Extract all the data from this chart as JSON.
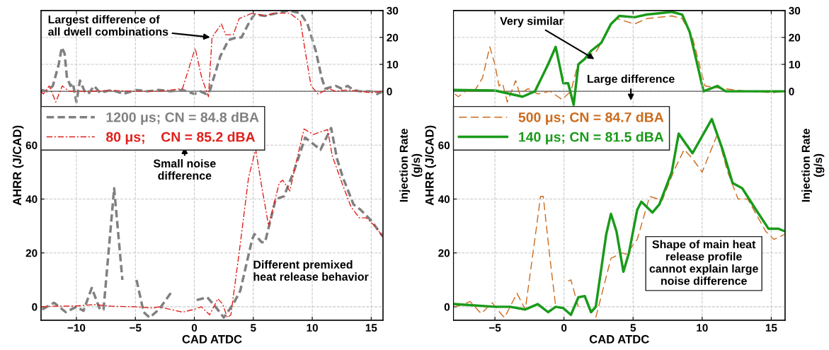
{
  "chart_data": [
    {
      "type": "line",
      "xlabel": "CAD ATDC",
      "ylabel": "AHRR (J/CAD)",
      "y2label": "Injection Rate\n(g/s)",
      "xlim": [
        -13,
        16
      ],
      "xticks": [
        -10,
        -5,
        0,
        5,
        10,
        15
      ],
      "ylim": [
        -5,
        110
      ],
      "yticks": [
        0,
        20,
        40,
        60
      ],
      "y2lim": [
        -85,
        30
      ],
      "y2ticks": [
        0,
        10,
        20,
        30
      ],
      "grid": true,
      "legend": "top left",
      "marker": "none",
      "ref_lines": [
        {
          "axis": "y2",
          "value": 0,
          "color": "#606060",
          "line_style": "solid"
        }
      ],
      "annotations": [
        {
          "text": "Largest difference of\nall dwell combinations",
          "x": 1.5,
          "y": 100
        },
        "Small noise\ndifference",
        "Different premixed\nheat release behavior"
      ],
      "series": [
        {
          "name": "1200 μs; CN = 84.8 dBA",
          "color": "#808080",
          "line_style": "dashed",
          "x": [
            -12.9,
            -11.9,
            -10.9,
            -10,
            -9.4,
            -8.7,
            -8.0,
            -7.7,
            -6.8,
            -6.1,
            -5.6,
            -4.9,
            -4.3,
            -3.8,
            -3,
            -1.85,
            -0.7,
            0.2,
            1.1,
            1.8,
            2.5,
            3.3,
            3.9,
            4.9,
            5.1,
            5.7,
            6.0,
            6.9,
            7.6,
            8.5,
            9.4,
            10.7,
            11.6,
            12.1,
            12.6,
            13.5,
            14.1,
            15,
            16
          ],
          "values": [
            -1,
            1.5,
            -2,
            0,
            -1.5,
            7,
            -1,
            -1,
            44,
            10,
            null,
            10,
            -2,
            -4,
            -1,
            6,
            null,
            2.5,
            3.5,
            0,
            -4,
            1,
            6,
            25,
            27,
            24,
            24,
            40,
            41,
            51,
            62.8,
            58.3,
            66.4,
            55,
            48,
            38,
            36,
            32,
            26
          ]
        },
        {
          "name": "80 μs;    CN = 85.2 dBA",
          "color": "#e0201b",
          "line_style": "dashed",
          "x": [
            -13,
            -12,
            -10,
            -8.5,
            -7,
            -5,
            -3.5,
            -3,
            -2,
            -1,
            -0.05,
            0.6,
            1.3,
            2.0,
            2.4,
            2.8,
            3.1,
            3.8,
            4.6,
            5.2,
            5.7,
            6.3,
            7.2,
            7.5,
            8.1,
            8.5,
            9.3,
            10.1,
            11.3,
            11.7,
            12.6,
            13.3,
            14,
            14.6,
            15.3,
            16
          ],
          "values": [
            0,
            0.2,
            0.3,
            0.8,
            0.2,
            0,
            -0.5,
            0,
            -1,
            -2,
            -1,
            0,
            -3,
            3,
            1,
            -4,
            -3,
            20,
            48,
            58.5,
            45,
            30,
            46,
            47,
            43,
            51,
            66,
            64,
            65.8,
            56,
            45,
            37,
            33,
            33,
            30,
            26
          ]
        },
        {
          "color": "#808080",
          "line_style": "dashed",
          "axis": "y2",
          "x": [
            -13,
            -12.5,
            -12,
            -11.5,
            -11.24,
            -11,
            -10.8,
            -10.5,
            -10.3,
            -10,
            -9.7,
            -9.3,
            -9,
            -8.5,
            -8,
            -7,
            -6,
            -5,
            -4,
            -3,
            -2,
            -1,
            0,
            0.5,
            1,
            1.3,
            2.2,
            2.9,
            3.56,
            4.0,
            4.7,
            5.1,
            6.0,
            7,
            8,
            9.0,
            9.6,
            10.3,
            10.8,
            11.1,
            12,
            12.5,
            13,
            13.5,
            14,
            15,
            15.5,
            16
          ],
          "values": [
            0.5,
            0,
            2,
            10,
            16.3,
            14,
            5,
            2,
            3,
            -4,
            4,
            0,
            -1,
            2,
            -0.5,
            0.5,
            -1,
            0.5,
            0,
            0.5,
            0,
            0.5,
            -1,
            0,
            -1,
            0,
            13,
            19,
            20,
            20,
            26,
            28.5,
            28,
            29,
            30,
            29,
            25,
            15,
            5,
            1,
            2,
            1,
            2,
            0.5,
            0,
            0,
            -1,
            0
          ]
        },
        {
          "color": "#e0201b",
          "line_style": "dashed",
          "axis": "y2",
          "x": [
            -13,
            -12.8,
            -12.3,
            -11.75,
            -11.2,
            -10.6,
            -9,
            -7,
            -5,
            -3,
            -1,
            0.07,
            0.63,
            1.2,
            1.5,
            2.3,
            2.65,
            3.3,
            3.8,
            4.9,
            6,
            6.7,
            8.1,
            9,
            9.4,
            9.9,
            10.5,
            11.4,
            12,
            13,
            14,
            15,
            16
          ],
          "values": [
            0,
            -1,
            2,
            -4,
            2,
            0,
            0,
            0.3,
            0,
            0,
            1,
            16,
            5,
            -2,
            20,
            25,
            21,
            21,
            27,
            29,
            28,
            29,
            29,
            26,
            15,
            2,
            -1,
            1,
            0,
            0.5,
            0,
            -0.5,
            0
          ]
        }
      ]
    },
    {
      "type": "line",
      "xlabel": "CAD ATDC",
      "ylabel": "AHRR (J/CAD)",
      "y2label": "Injection Rate\n(g/s)",
      "xlim": [
        -8,
        16
      ],
      "xticks": [
        -5,
        0,
        5,
        10,
        15
      ],
      "ylim": [
        -5,
        110
      ],
      "yticks": [
        0,
        20,
        40,
        60
      ],
      "y2lim": [
        -85,
        30
      ],
      "y2ticks": [
        0,
        10,
        20,
        30
      ],
      "grid": true,
      "legend": "top left",
      "marker": "none",
      "ref_lines": [
        {
          "axis": "y2",
          "value": 0,
          "color": "#606060",
          "line_style": "solid"
        }
      ],
      "annotations": [
        "Very similar",
        "Large difference",
        "Shape of main heat\nrelease profile\ncannot explain large\nnoise difference"
      ],
      "series": [
        {
          "name": "500 μs; CN = 84.7 dBA",
          "color": "#cc6a1a",
          "line_style": "dashed",
          "x": [
            -7.9,
            -7.2,
            -6.8,
            -6,
            -5.2,
            -4.5,
            -4.3,
            -3.4,
            -2.8,
            -1.98,
            -1.7,
            -1.5,
            -1.06,
            -0.6,
            -0.3,
            0.3,
            0.5,
            1.04,
            1.6,
            2.3,
            3.4,
            4.2,
            4.5,
            5.3,
            6.2,
            7.1,
            8,
            8.7,
            9.3,
            10,
            11.1,
            11.85,
            12.6,
            13.3,
            14.6,
            15.2,
            16
          ],
          "values": [
            0,
            1,
            2,
            -2.5,
            1.5,
            -3,
            -4,
            5,
            -1,
            30,
            41,
            41,
            20,
            0,
            null,
            9.5,
            10,
            0,
            null,
            -4,
            18,
            20,
            19.5,
            25,
            41,
            39.5,
            51,
            58.4,
            55,
            50,
            64,
            50,
            40,
            40,
            28,
            25,
            27
          ]
        },
        {
          "name": "140 μs; CN = 81.5 dBA",
          "color": "#1a9a1a",
          "line_style": "solid",
          "x": [
            -7.9,
            -5,
            -3.9,
            -2.8,
            -1.9,
            -1.15,
            -0.6,
            -0.05,
            0.5,
            1.04,
            1.5,
            1.96,
            2.3,
            3.06,
            3.4,
            3.8,
            4.3,
            4.7,
            5.3,
            5.6,
            6.4,
            6.9,
            7.8,
            8.3,
            9.3,
            10.7,
            11.5,
            12.2,
            12.9,
            13.9,
            14.8,
            15.5,
            16
          ],
          "values": [
            1,
            0,
            0,
            -1,
            1,
            -2,
            0,
            -0.5,
            -3,
            3.5,
            4,
            -2,
            0,
            27,
            34.5,
            28,
            13,
            20,
            36,
            39,
            35,
            38,
            50,
            64.3,
            57,
            69.7,
            58,
            46,
            44,
            36,
            29,
            29,
            28
          ]
        },
        {
          "color": "#cc6a1a",
          "line_style": "dashed",
          "axis": "y2",
          "x": [
            -7.9,
            -7.65,
            -7,
            -6.55,
            -5.9,
            -5.37,
            -5,
            -4.7,
            -4.45,
            -4.1,
            -3.5,
            -3.2,
            -2.6,
            -1.9,
            -1,
            -0.15,
            0.5,
            1.0,
            1.6,
            2.3,
            2.7,
            3.4,
            3.8,
            5.1,
            6,
            7.8,
            8.55,
            9.3,
            9.8,
            10.2,
            11.5,
            13.3,
            15.1,
            16
          ],
          "values": [
            -1,
            -2,
            0.5,
            -0.5,
            5,
            16.5,
            10,
            2,
            3,
            -4,
            4,
            -1,
            1,
            -1,
            0,
            -3,
            0,
            10,
            13,
            14.5,
            18,
            25,
            27,
            25,
            27,
            28,
            27,
            20,
            10,
            2,
            1,
            0,
            -0.5,
            0
          ]
        },
        {
          "color": "#1a9a1a",
          "line_style": "solid",
          "axis": "y2",
          "x": [
            -7.9,
            -5,
            -3,
            -2.1,
            -1.15,
            -0.6,
            -0.05,
            0.3,
            0.7,
            1.04,
            1.5,
            1.96,
            2.7,
            3.4,
            4,
            5.1,
            6,
            6.9,
            7.8,
            8.55,
            9.1,
            9.65,
            10.1,
            11.1,
            11.7,
            13.3,
            16
          ],
          "values": [
            0.5,
            0.3,
            -2,
            0,
            10,
            16.5,
            3,
            3,
            -5,
            10,
            12,
            15,
            18,
            25,
            28,
            27.5,
            28.5,
            29,
            29.5,
            28.5,
            22,
            10,
            0,
            2,
            0,
            0,
            0
          ]
        }
      ]
    }
  ]
}
